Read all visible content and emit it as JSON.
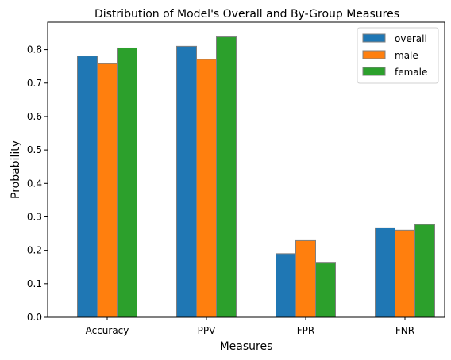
{
  "chart_data": {
    "type": "bar",
    "title": "Distribution of Model's Overall and By-Group Measures",
    "xlabel": "Measures",
    "ylabel": "Probability",
    "categories": [
      "Accuracy",
      "PPV",
      "FPR",
      "FNR"
    ],
    "series": [
      {
        "name": "overall",
        "color": "#1f77b4",
        "values": [
          0.781,
          0.81,
          0.19,
          0.267
        ]
      },
      {
        "name": "male",
        "color": "#ff7f0e",
        "values": [
          0.758,
          0.771,
          0.229,
          0.26
        ]
      },
      {
        "name": "female",
        "color": "#2ca02c",
        "values": [
          0.805,
          0.838,
          0.162,
          0.277
        ]
      }
    ],
    "ylim": [
      0,
      0.882
    ],
    "yticks": [
      "0.0",
      "0.1",
      "0.2",
      "0.3",
      "0.4",
      "0.5",
      "0.6",
      "0.7",
      "0.8"
    ],
    "grid": false,
    "legend_position": "top-right",
    "bar_edge_color": "#808080"
  }
}
